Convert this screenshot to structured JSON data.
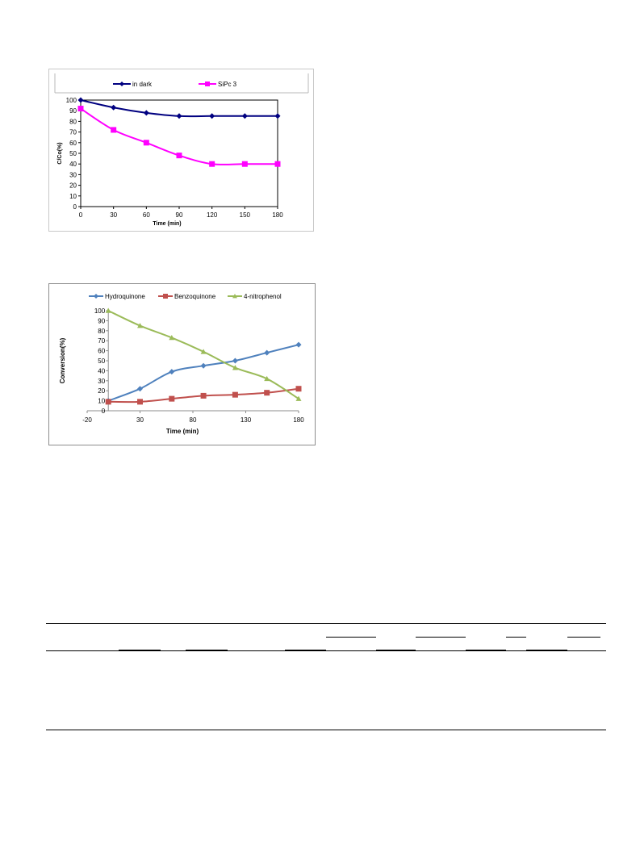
{
  "chart_data": [
    {
      "type": "line",
      "title": "",
      "xlabel": "Time (min)",
      "ylabel": "C/Co(%)",
      "x": [
        0,
        30,
        60,
        90,
        120,
        150,
        180
      ],
      "xticks": [
        "0",
        "30",
        "60",
        "90",
        "120",
        "150",
        "180"
      ],
      "yticks": [
        "0",
        "10",
        "20",
        "30",
        "40",
        "50",
        "60",
        "70",
        "80",
        "90",
        "100"
      ],
      "xlim": [
        0,
        180
      ],
      "ylim": [
        0,
        100
      ],
      "grid": false,
      "legend": "top",
      "series": [
        {
          "name": "in dark",
          "color": "#000080",
          "marker": "diamond",
          "values": [
            100,
            93,
            88,
            85,
            85,
            85,
            85
          ]
        },
        {
          "name": "SiPc 3",
          "color": "#FF00FF",
          "marker": "square",
          "values": [
            92,
            72,
            60,
            48,
            40,
            40,
            40
          ]
        }
      ]
    },
    {
      "type": "line",
      "title": "",
      "xlabel": "Time (min)",
      "ylabel": "Conversion(%)",
      "xticks": [
        "-20",
        "30",
        "80",
        "130",
        "180"
      ],
      "yticks": [
        "0",
        "10",
        "20",
        "30",
        "40",
        "50",
        "60",
        "70",
        "80",
        "90",
        "100"
      ],
      "xlim": [
        -20,
        180
      ],
      "ylim": [
        0,
        100
      ],
      "grid": false,
      "legend": "top",
      "series": [
        {
          "name": "Hydroquinone",
          "color": "#4F81BD",
          "marker": "diamond",
          "x": [
            0,
            30,
            60,
            90,
            120,
            150,
            180
          ],
          "values": [
            10,
            22,
            39,
            45,
            50,
            58,
            66
          ]
        },
        {
          "name": "Benzoquinone",
          "color": "#C0504D",
          "marker": "square",
          "x": [
            0,
            30,
            60,
            90,
            120,
            150,
            180
          ],
          "values": [
            9,
            9,
            12,
            15,
            16,
            18,
            22
          ]
        },
        {
          "name": "4-nitrophenol",
          "color": "#9BBB59",
          "marker": "triangle",
          "x": [
            0,
            30,
            60,
            90,
            120,
            150,
            180
          ],
          "values": [
            100,
            85,
            73,
            59,
            43,
            32,
            12
          ]
        }
      ]
    }
  ]
}
